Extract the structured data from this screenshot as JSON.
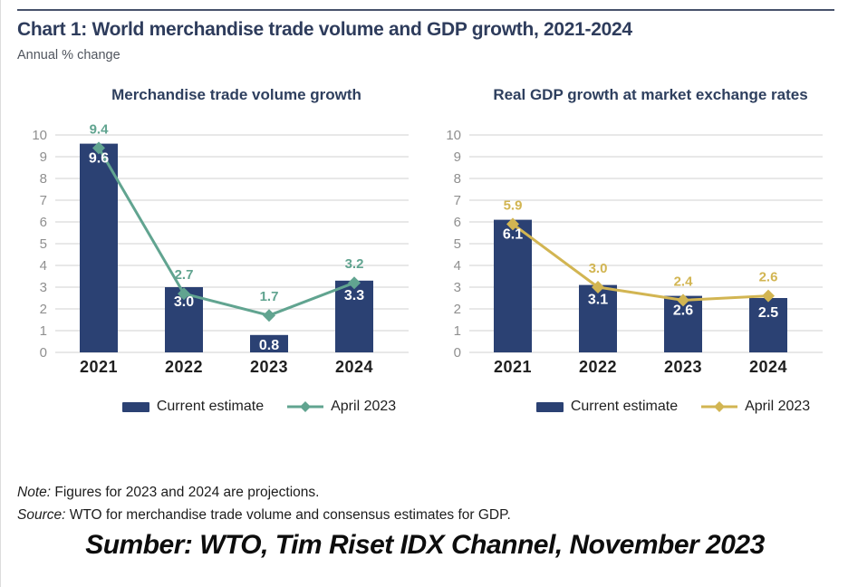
{
  "page": {
    "title": "Chart 1: World merchandise trade volume and GDP growth, 2021-2024",
    "subtitle": "Annual % change",
    "note_label": "Note:",
    "note_text": " Figures for 2023 and 2024 are projections.",
    "source_label": "Source:",
    "source_text": " WTO for merchandise trade volume and consensus estimates for GDP.",
    "caption": "Sumber: WTO, Tim Riset IDX Channel, November 2023"
  },
  "colors": {
    "bar": "#2b4173",
    "teal": "#61a490",
    "gold": "#d2b552",
    "grid": "#d9d9d9",
    "axis_text": "#8f8f8f",
    "title_navy": "#2e3f5e",
    "bar_label": "#ffffff",
    "year_text": "#1f1f1f"
  },
  "chart_data": [
    {
      "type": "bar",
      "title": "Merchandise trade volume growth",
      "categories": [
        "2021",
        "2022",
        "2023",
        "2024"
      ],
      "series": [
        {
          "name": "Current estimate",
          "type": "bar",
          "values": [
            9.6,
            3.0,
            0.8,
            3.3
          ]
        },
        {
          "name": "April 2023",
          "type": "line",
          "values": [
            9.4,
            2.7,
            1.7,
            3.2
          ]
        }
      ],
      "ylabel": "Annual % change",
      "ylim": [
        0,
        10
      ],
      "yticks": [
        0,
        1,
        2,
        3,
        4,
        5,
        6,
        7,
        8,
        9,
        10
      ],
      "grid": true,
      "legend_position": "bottom",
      "line_color": "teal"
    },
    {
      "type": "bar",
      "title": "Real GDP growth at market exchange rates",
      "categories": [
        "2021",
        "2022",
        "2023",
        "2024"
      ],
      "series": [
        {
          "name": "Current estimate",
          "type": "bar",
          "values": [
            6.1,
            3.1,
            2.6,
            2.5
          ]
        },
        {
          "name": "April 2023",
          "type": "line",
          "values": [
            5.9,
            3.0,
            2.4,
            2.6
          ]
        }
      ],
      "ylabel": "Annual % change",
      "ylim": [
        0,
        10
      ],
      "yticks": [
        0,
        1,
        2,
        3,
        4,
        5,
        6,
        7,
        8,
        9,
        10
      ],
      "grid": true,
      "legend_position": "bottom",
      "line_color": "gold"
    }
  ]
}
